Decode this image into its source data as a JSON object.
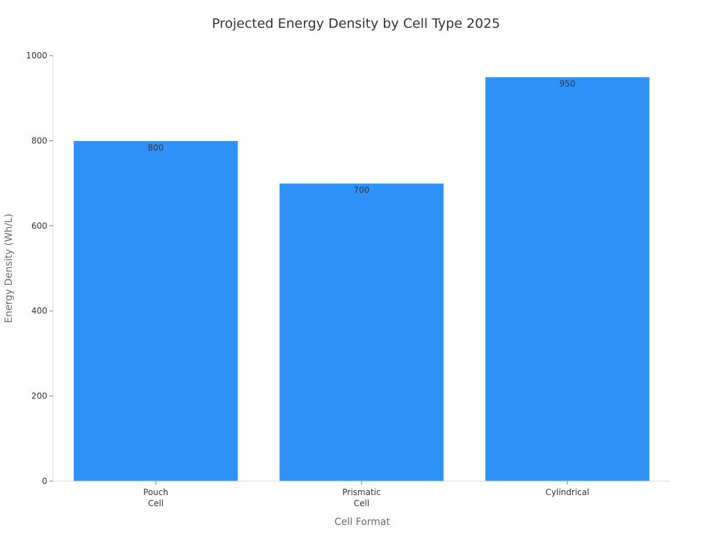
{
  "chart_data": {
    "type": "bar",
    "title": "Projected Energy Density by Cell Type 2025",
    "xlabel": "Cell Format",
    "ylabel": "Energy Density (Wh/L)",
    "categories": [
      "Pouch Cell",
      "Prismatic Cell",
      "Cylindrical"
    ],
    "category_label_lines": [
      [
        "Pouch",
        "Cell"
      ],
      [
        "Prismatic",
        "Cell"
      ],
      [
        "Cylindrical"
      ]
    ],
    "values": [
      800,
      700,
      950
    ],
    "data_labels": [
      "800",
      "700",
      "950"
    ],
    "ylim": [
      0,
      1000
    ],
    "yticks": [
      0,
      200,
      400,
      600,
      800,
      1000
    ],
    "grid": false,
    "legend": "none",
    "bar_color": "#2f92f8",
    "bar_edge_color": "#e8f2ff"
  }
}
